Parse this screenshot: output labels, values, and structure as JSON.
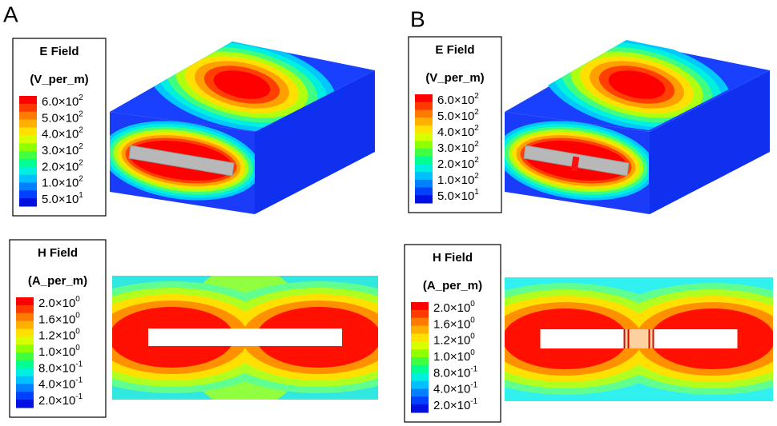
{
  "panels": [
    {
      "label": "A",
      "e_legend": {
        "title": "E Field",
        "unit": "(V_per_m)",
        "ticks": [
          {
            "base": "6.0×10",
            "exp": "2"
          },
          {
            "base": "5.0×10",
            "exp": "2"
          },
          {
            "base": "4.0×10",
            "exp": "2"
          },
          {
            "base": "3.0×10",
            "exp": "2"
          },
          {
            "base": "2.0×10",
            "exp": "2"
          },
          {
            "base": "1.0×10",
            "exp": "2"
          },
          {
            "base": "5.0×10",
            "exp": "1"
          }
        ]
      },
      "h_legend": {
        "title": "H Field",
        "unit": "(A_per_m)",
        "ticks": [
          {
            "base": "2.0×10",
            "exp": "0"
          },
          {
            "base": "1.6×10",
            "exp": "0"
          },
          {
            "base": "1.2×10",
            "exp": "0"
          },
          {
            "base": "1.0×10",
            "exp": "0"
          },
          {
            "base": "8.0×10",
            "exp": "-1"
          },
          {
            "base": "4.0×10",
            "exp": "-1"
          },
          {
            "base": "2.0×10",
            "exp": "-1"
          }
        ]
      }
    },
    {
      "label": "B",
      "e_legend": {
        "title": "E Field",
        "unit": "(V_per_m)",
        "ticks": [
          {
            "base": "6.0×10",
            "exp": "2"
          },
          {
            "base": "5.0×10",
            "exp": "2"
          },
          {
            "base": "4.0×10",
            "exp": "2"
          },
          {
            "base": "3.0×10",
            "exp": "2"
          },
          {
            "base": "2.0×10",
            "exp": "2"
          },
          {
            "base": "1.0×10",
            "exp": "2"
          },
          {
            "base": "5.0×10",
            "exp": "1"
          }
        ]
      },
      "h_legend": {
        "title": "H Field",
        "unit": "(A_per_m)",
        "ticks": [
          {
            "base": "2.0×10",
            "exp": "0"
          },
          {
            "base": "1.6×10",
            "exp": "0"
          },
          {
            "base": "1.2×10",
            "exp": "0"
          },
          {
            "base": "1.0×10",
            "exp": "0"
          },
          {
            "base": "8.0×10",
            "exp": "-1"
          },
          {
            "base": "4.0×10",
            "exp": "-1"
          },
          {
            "base": "2.0×10",
            "exp": "-1"
          }
        ]
      }
    }
  ]
}
